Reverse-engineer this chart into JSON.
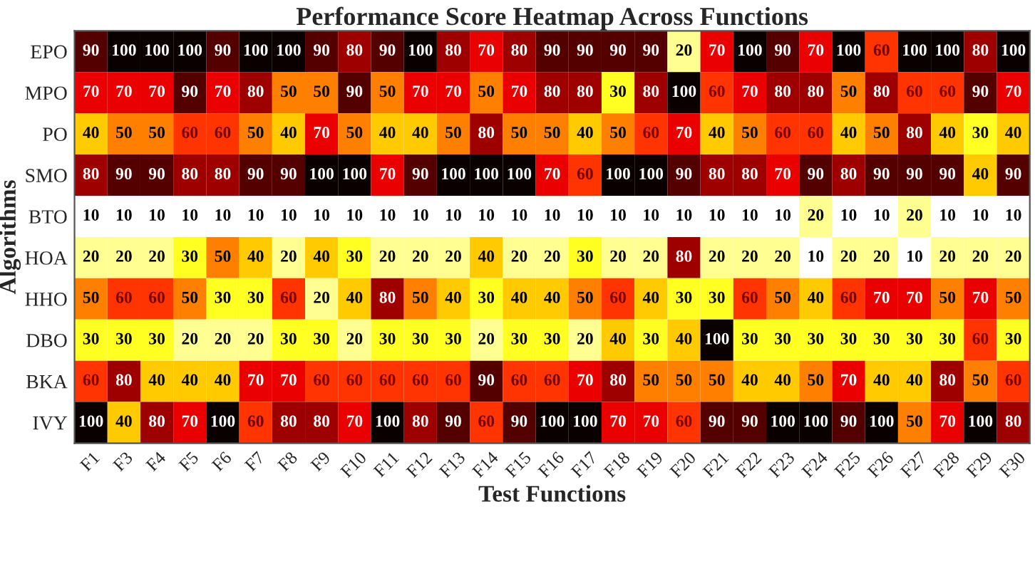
{
  "chart_data": {
    "type": "heatmap",
    "title": "Performance Score Heatmap Across Functions",
    "xlabel": "Test Functions",
    "ylabel": "Algorithms",
    "categories": [
      "F1",
      "F3",
      "F4",
      "F5",
      "F6",
      "F7",
      "F8",
      "F9",
      "F10",
      "F11",
      "F12",
      "F13",
      "F14",
      "F15",
      "F16",
      "F17",
      "F18",
      "F19",
      "F20",
      "F21",
      "F22",
      "F23",
      "F24",
      "F25",
      "F26",
      "F27",
      "F28",
      "F29",
      "F30"
    ],
    "y_categories": [
      "EPO",
      "MPO",
      "PO",
      "SMO",
      "BTO",
      "HOA",
      "HHO",
      "DBO",
      "BKA",
      "IVY"
    ],
    "cells": [
      [
        90,
        100,
        100,
        100,
        90,
        100,
        100,
        90,
        80,
        90,
        100,
        80,
        70,
        80,
        90,
        90,
        90,
        90,
        20,
        70,
        100,
        90,
        70,
        100,
        60,
        100,
        100,
        80,
        100
      ],
      [
        70,
        70,
        70,
        90,
        70,
        80,
        50,
        50,
        90,
        50,
        70,
        70,
        50,
        70,
        80,
        80,
        30,
        80,
        100,
        60,
        70,
        80,
        80,
        50,
        80,
        60,
        60,
        90,
        70
      ],
      [
        40,
        50,
        50,
        60,
        60,
        50,
        40,
        70,
        50,
        40,
        40,
        50,
        80,
        50,
        50,
        40,
        50,
        60,
        70,
        40,
        50,
        60,
        60,
        40,
        50,
        80,
        40,
        30,
        40
      ],
      [
        80,
        90,
        90,
        80,
        80,
        90,
        90,
        100,
        100,
        70,
        90,
        100,
        100,
        100,
        70,
        60,
        100,
        100,
        90,
        80,
        80,
        70,
        90,
        80,
        90,
        90,
        90,
        40,
        90
      ],
      [
        10,
        10,
        10,
        10,
        10,
        10,
        10,
        10,
        10,
        10,
        10,
        10,
        10,
        10,
        10,
        10,
        10,
        10,
        10,
        10,
        10,
        10,
        20,
        10,
        10,
        20,
        10,
        10,
        10
      ],
      [
        20,
        20,
        20,
        30,
        50,
        40,
        20,
        40,
        30,
        20,
        20,
        20,
        40,
        20,
        20,
        30,
        20,
        20,
        80,
        20,
        20,
        20,
        10,
        20,
        20,
        10,
        20,
        20,
        20
      ],
      [
        50,
        60,
        60,
        50,
        30,
        30,
        60,
        20,
        40,
        80,
        50,
        40,
        30,
        40,
        40,
        50,
        60,
        40,
        30,
        30,
        60,
        50,
        40,
        60,
        70,
        70,
        50,
        70,
        50
      ],
      [
        30,
        30,
        30,
        20,
        20,
        20,
        30,
        30,
        20,
        30,
        30,
        30,
        20,
        30,
        30,
        20,
        40,
        30,
        40,
        100,
        30,
        30,
        30,
        30,
        30,
        30,
        30,
        60,
        30
      ],
      [
        60,
        80,
        40,
        40,
        40,
        70,
        70,
        60,
        60,
        60,
        60,
        60,
        90,
        60,
        60,
        70,
        80,
        50,
        50,
        50,
        40,
        40,
        50,
        70,
        40,
        40,
        80,
        50,
        60
      ],
      [
        100,
        40,
        80,
        70,
        100,
        60,
        80,
        80,
        70,
        100,
        80,
        90,
        60,
        90,
        100,
        100,
        70,
        70,
        60,
        90,
        90,
        100,
        100,
        90,
        100,
        50,
        70,
        100,
        80
      ]
    ],
    "data_labels": true
  }
}
